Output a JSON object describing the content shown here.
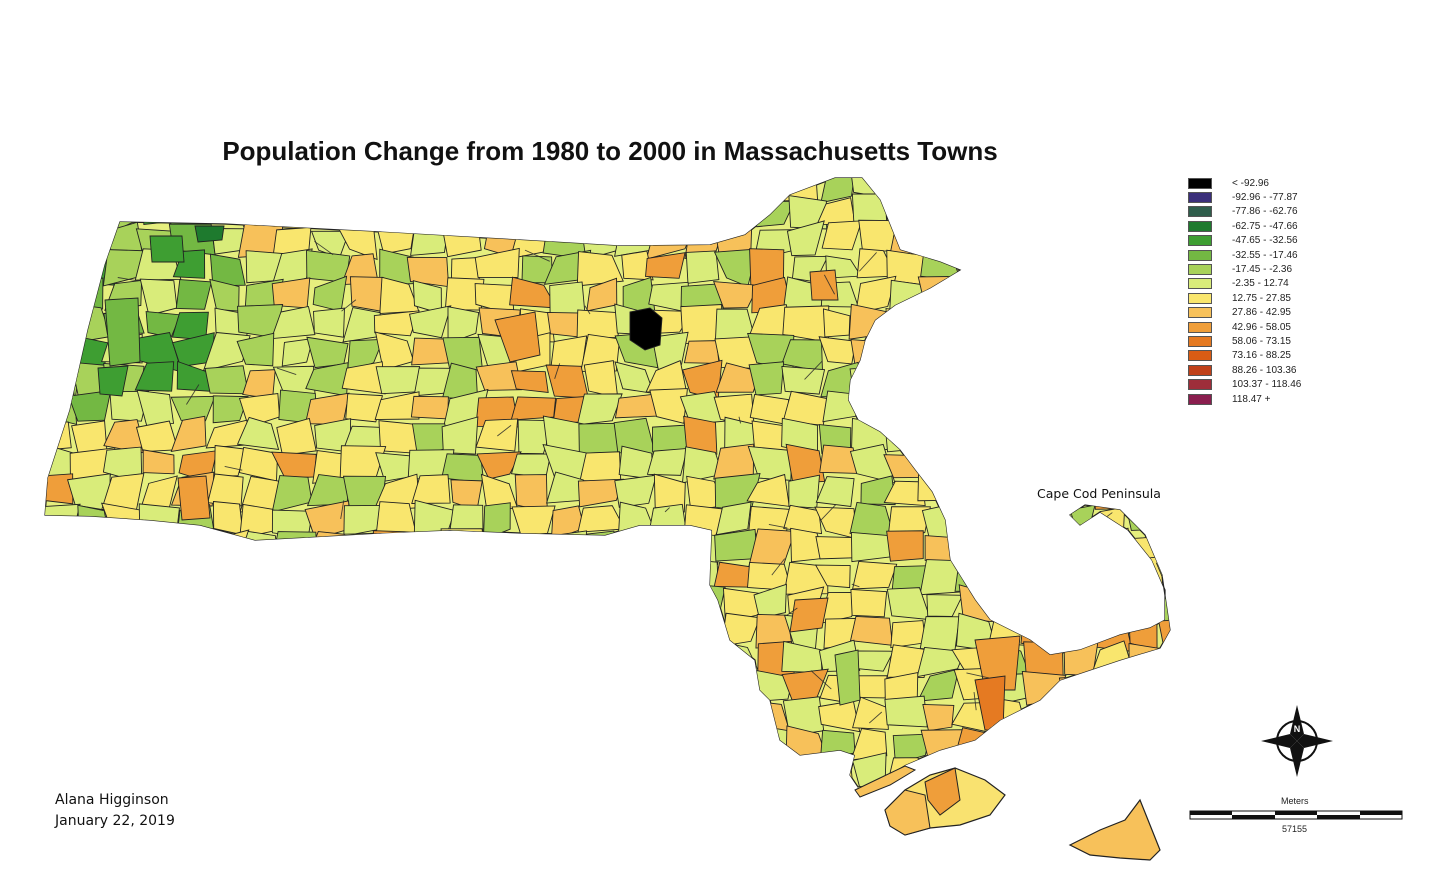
{
  "title": "Population Change from 1980 to 2000 in Massachusetts Towns",
  "legend": {
    "items": [
      {
        "label": "< -92.96",
        "color": "#000000"
      },
      {
        "label": "-92.96 - -77.87",
        "color": "#3b2f7a"
      },
      {
        "label": "-77.86 - -62.76",
        "color": "#2f5d4b"
      },
      {
        "label": "-62.75 - -47.66",
        "color": "#1e7a2e"
      },
      {
        "label": "-47.65 - -32.56",
        "color": "#3e9e32"
      },
      {
        "label": "-32.55 - -17.46",
        "color": "#73b843"
      },
      {
        "label": "-17.45 - -2.36",
        "color": "#a8d25a"
      },
      {
        "label": "-2.35 - 12.74",
        "color": "#d9ec7a"
      },
      {
        "label": "12.75 - 27.85",
        "color": "#f9e66e"
      },
      {
        "label": "27.86 - 42.95",
        "color": "#f7c15a"
      },
      {
        "label": "42.96 - 58.05",
        "color": "#ef9e3a"
      },
      {
        "label": "58.06 - 73.15",
        "color": "#e57a22"
      },
      {
        "label": "73.16 - 88.25",
        "color": "#d95c14"
      },
      {
        "label": "88.26 - 103.36",
        "color": "#c0411a"
      },
      {
        "label": "103.37 - 118.46",
        "color": "#9e2e3a"
      },
      {
        "label": "118.47 +",
        "color": "#8a1e4e"
      }
    ]
  },
  "annotation": "Cape Cod Peninsula",
  "author": {
    "name": "Alana Higginson",
    "date": "January 22, 2019"
  },
  "scale_bar": {
    "units": "Meters",
    "value": "57155"
  },
  "north_arrow": {
    "icon": "north-arrow-icon",
    "letter": "N"
  },
  "colors": {
    "outline": "#222222",
    "background": "#ffffff"
  }
}
